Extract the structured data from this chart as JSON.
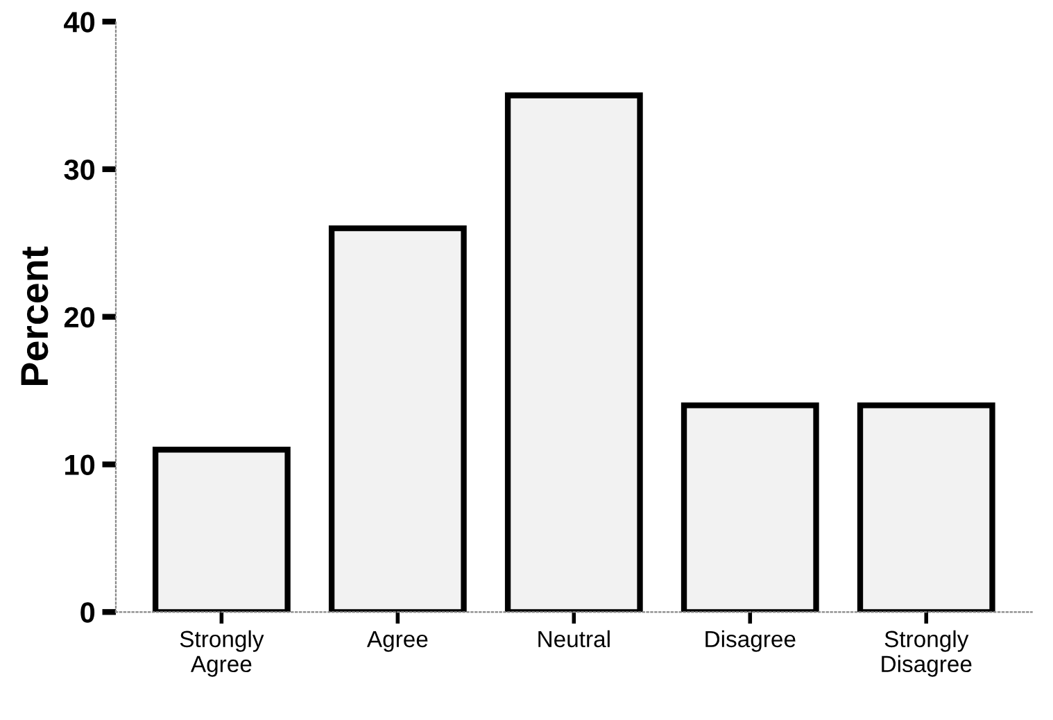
{
  "chart_data": {
    "type": "bar",
    "ylabel": "Percent",
    "categories": [
      "Strongly Agree",
      "Agree",
      "Neutral",
      "Disagree",
      "Strongly Disagree"
    ],
    "values": [
      11,
      26,
      35,
      14,
      14
    ],
    "color": "#f2f2f2",
    "ylim": [
      0,
      40
    ],
    "yticks": [
      0,
      10,
      20,
      30,
      40
    ],
    "grid": false,
    "legend": false
  }
}
